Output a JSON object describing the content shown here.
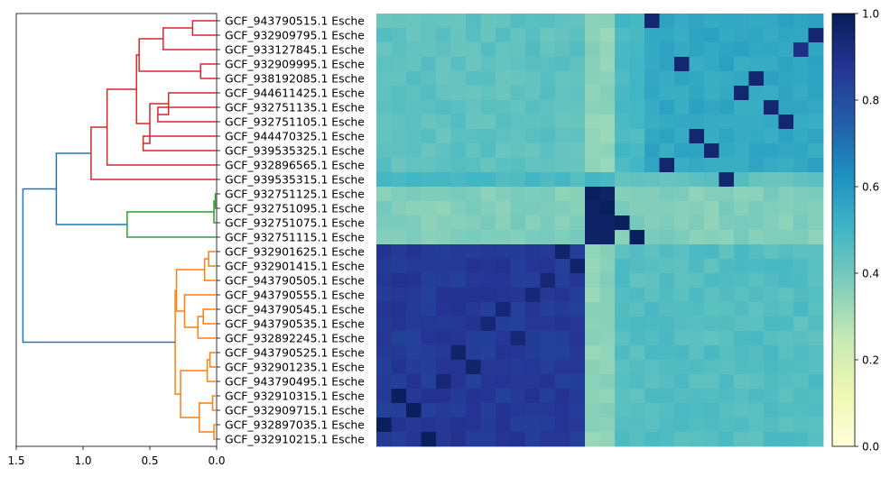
{
  "chart_data": [
    {
      "type": "dendrogram",
      "orientation": "left",
      "xlim": [
        1.5,
        0.0
      ],
      "xticks": [
        1.5,
        1.0,
        0.5,
        0.0
      ],
      "xtick_labels": [
        "1.5",
        "1.0",
        "0.5",
        "0.0"
      ],
      "colors": {
        "red": "#d62728",
        "green": "#2ca02c",
        "orange": "#ff7f0e",
        "blue": "#1f77b4"
      },
      "leaves": [
        "GCF_943790515.1 Esche",
        "GCF_932909795.1 Esche",
        "GCF_933127845.1 Esche",
        "GCF_932909995.1 Esche",
        "GCF_938192085.1 Esche",
        "GCF_944611425.1 Esche",
        "GCF_932751135.1 Esche",
        "GCF_932751105.1 Esche",
        "GCF_944470325.1 Esche",
        "GCF_939535325.1 Esche",
        "GCF_932896565.1 Esche",
        "GCF_939535315.1 Esche",
        "GCF_932751125.1 Esche",
        "GCF_932751095.1 Esche",
        "GCF_932751075.1 Esche",
        "GCF_932751115.1 Esche",
        "GCF_932901625.1 Esche",
        "GCF_932901415.1 Esche",
        "GCF_943790505.1 Esche",
        "GCF_943790555.1 Esche",
        "GCF_943790545.1 Esche",
        "GCF_943790535.1 Esche",
        "GCF_932892245.1 Esche",
        "GCF_943790525.1 Esche",
        "GCF_932901235.1 Esche",
        "GCF_943790495.1 Esche",
        "GCF_932910315.1 Esche",
        "GCF_932909715.1 Esche",
        "GCF_932897035.1 Esche",
        "GCF_932910215.1 Esche"
      ],
      "merges": [
        {
          "a": 0,
          "b": 1,
          "h": 0.18,
          "c": "red"
        },
        {
          "a": "L0",
          "b": 2,
          "h": 0.4,
          "c": "red"
        },
        {
          "a": 3,
          "b": 4,
          "h": 0.12,
          "c": "red"
        },
        {
          "a": "L1",
          "b": "L2",
          "h": 0.58,
          "c": "red"
        },
        {
          "a": 6,
          "b": 7,
          "h": 0.44,
          "c": "red"
        },
        {
          "a": 5,
          "b": "L4",
          "h": 0.36,
          "c": "red"
        },
        {
          "a": 8,
          "b": 9,
          "h": 0.55,
          "c": "red"
        },
        {
          "a": "L5",
          "b": "L6",
          "h": 0.5,
          "c": "red"
        },
        {
          "a": "L3",
          "b": "L7",
          "h": 0.6,
          "c": "red"
        },
        {
          "a": "L8",
          "b": 10,
          "h": 0.82,
          "c": "red"
        },
        {
          "a": "L9",
          "b": 11,
          "h": 0.94,
          "c": "red"
        },
        {
          "a": 12,
          "b": 13,
          "h": 0.01,
          "c": "green"
        },
        {
          "a": "L11",
          "b": 14,
          "h": 0.02,
          "c": "green"
        },
        {
          "a": "L12",
          "b": 15,
          "h": 0.67,
          "c": "green"
        },
        {
          "a": 16,
          "b": 17,
          "h": 0.06,
          "c": "orange"
        },
        {
          "a": "L14",
          "b": 18,
          "h": 0.09,
          "c": "orange"
        },
        {
          "a": 20,
          "b": 21,
          "h": 0.1,
          "c": "orange"
        },
        {
          "a": "L16",
          "b": 22,
          "h": 0.14,
          "c": "orange"
        },
        {
          "a": 19,
          "b": "L17",
          "h": 0.24,
          "c": "orange"
        },
        {
          "a": "L15",
          "b": "L18",
          "h": 0.3,
          "c": "orange"
        },
        {
          "a": 23,
          "b": 24,
          "h": 0.05,
          "c": "orange"
        },
        {
          "a": "L20",
          "b": 25,
          "h": 0.07,
          "c": "orange"
        },
        {
          "a": 26,
          "b": 27,
          "h": 0.03,
          "c": "orange"
        },
        {
          "a": 28,
          "b": 29,
          "h": 0.02,
          "c": "orange"
        },
        {
          "a": "L22",
          "b": "L23",
          "h": 0.13,
          "c": "orange"
        },
        {
          "a": "L21",
          "b": "L24",
          "h": 0.27,
          "c": "orange"
        },
        {
          "a": "L19",
          "b": "L25",
          "h": 0.31,
          "c": "orange"
        },
        {
          "a": "L10",
          "b": "L13",
          "h": 1.2,
          "c": "blue"
        },
        {
          "a": "L27",
          "b": "L26",
          "h": 1.45,
          "c": "blue"
        }
      ]
    },
    {
      "type": "heatmap",
      "size": 30,
      "colormap": "YlGnBu",
      "vmin": 0.0,
      "vmax": 1.0,
      "blocks": [
        {
          "rows": [
            0,
            11
          ],
          "cols": [
            0,
            14
          ],
          "value": 0.44
        },
        {
          "rows": [
            0,
            11
          ],
          "cols": [
            14,
            16
          ],
          "value": 0.35
        },
        {
          "rows": [
            0,
            11
          ],
          "cols": [
            16,
            18
          ],
          "value": 0.48
        },
        {
          "rows": [
            0,
            11
          ],
          "cols": [
            18,
            30
          ],
          "value": 0.55
        },
        {
          "rows": [
            11,
            12
          ],
          "cols": [
            0,
            16
          ],
          "value": 0.48
        },
        {
          "rows": [
            11,
            12
          ],
          "cols": [
            16,
            30
          ],
          "value": 0.44
        },
        {
          "rows": [
            12,
            16
          ],
          "cols": [
            0,
            14
          ],
          "value": 0.37
        },
        {
          "rows": [
            12,
            16
          ],
          "cols": [
            14,
            16
          ],
          "value": 0.97
        },
        {
          "rows": [
            12,
            16
          ],
          "cols": [
            16,
            30
          ],
          "value": 0.37
        },
        {
          "rows": [
            16,
            30
          ],
          "cols": [
            0,
            14
          ],
          "value": 0.86
        },
        {
          "rows": [
            16,
            30
          ],
          "cols": [
            14,
            16
          ],
          "value": 0.35
        },
        {
          "rows": [
            16,
            30
          ],
          "cols": [
            16,
            30
          ],
          "value": 0.46
        }
      ],
      "cells": [
        {
          "r": 0,
          "c": 18,
          "v": 0.95
        },
        {
          "r": 1,
          "c": 29,
          "v": 0.95
        },
        {
          "r": 2,
          "c": 28,
          "v": 0.9
        },
        {
          "r": 3,
          "c": 20,
          "v": 0.95
        },
        {
          "r": 4,
          "c": 25,
          "v": 0.95
        },
        {
          "r": 5,
          "c": 24,
          "v": 0.95
        },
        {
          "r": 6,
          "c": 26,
          "v": 0.95
        },
        {
          "r": 7,
          "c": 27,
          "v": 0.95
        },
        {
          "r": 8,
          "c": 21,
          "v": 0.95
        },
        {
          "r": 9,
          "c": 22,
          "v": 0.95
        },
        {
          "r": 10,
          "c": 19,
          "v": 0.95
        },
        {
          "r": 11,
          "c": 23,
          "v": 0.95
        },
        {
          "r": 12,
          "c": 14,
          "v": 0.99
        },
        {
          "r": 13,
          "c": 15,
          "v": 0.99
        },
        {
          "r": 14,
          "c": 16,
          "v": 0.99
        },
        {
          "r": 15,
          "c": 17,
          "v": 0.99
        },
        {
          "r": 16,
          "c": 12,
          "v": 0.96
        },
        {
          "r": 17,
          "c": 13,
          "v": 0.96
        },
        {
          "r": 18,
          "c": 11,
          "v": 0.94
        },
        {
          "r": 19,
          "c": 10,
          "v": 0.94
        },
        {
          "r": 20,
          "c": 8,
          "v": 0.94
        },
        {
          "r": 21,
          "c": 7,
          "v": 0.94
        },
        {
          "r": 22,
          "c": 9,
          "v": 0.94
        },
        {
          "r": 23,
          "c": 5,
          "v": 0.96
        },
        {
          "r": 24,
          "c": 6,
          "v": 0.96
        },
        {
          "r": 25,
          "c": 4,
          "v": 0.94
        },
        {
          "r": 26,
          "c": 1,
          "v": 0.99
        },
        {
          "r": 27,
          "c": 2,
          "v": 0.99
        },
        {
          "r": 28,
          "c": 0,
          "v": 0.99
        },
        {
          "r": 29,
          "c": 3,
          "v": 0.99
        }
      ]
    },
    {
      "type": "colorbar",
      "colormap": "YlGnBu",
      "ylim": [
        0.0,
        1.0
      ],
      "ticks": [
        0.0,
        0.2,
        0.4,
        0.6,
        0.8,
        1.0
      ],
      "tick_labels": [
        "0.0",
        "0.2",
        "0.4",
        "0.6",
        "0.8",
        "1.0"
      ],
      "colormap_stops": [
        "#ffffd9",
        "#edf8b1",
        "#c7e9b4",
        "#7fcdbb",
        "#41b6c4",
        "#1d91c0",
        "#225ea8",
        "#253494",
        "#081d58"
      ]
    }
  ]
}
